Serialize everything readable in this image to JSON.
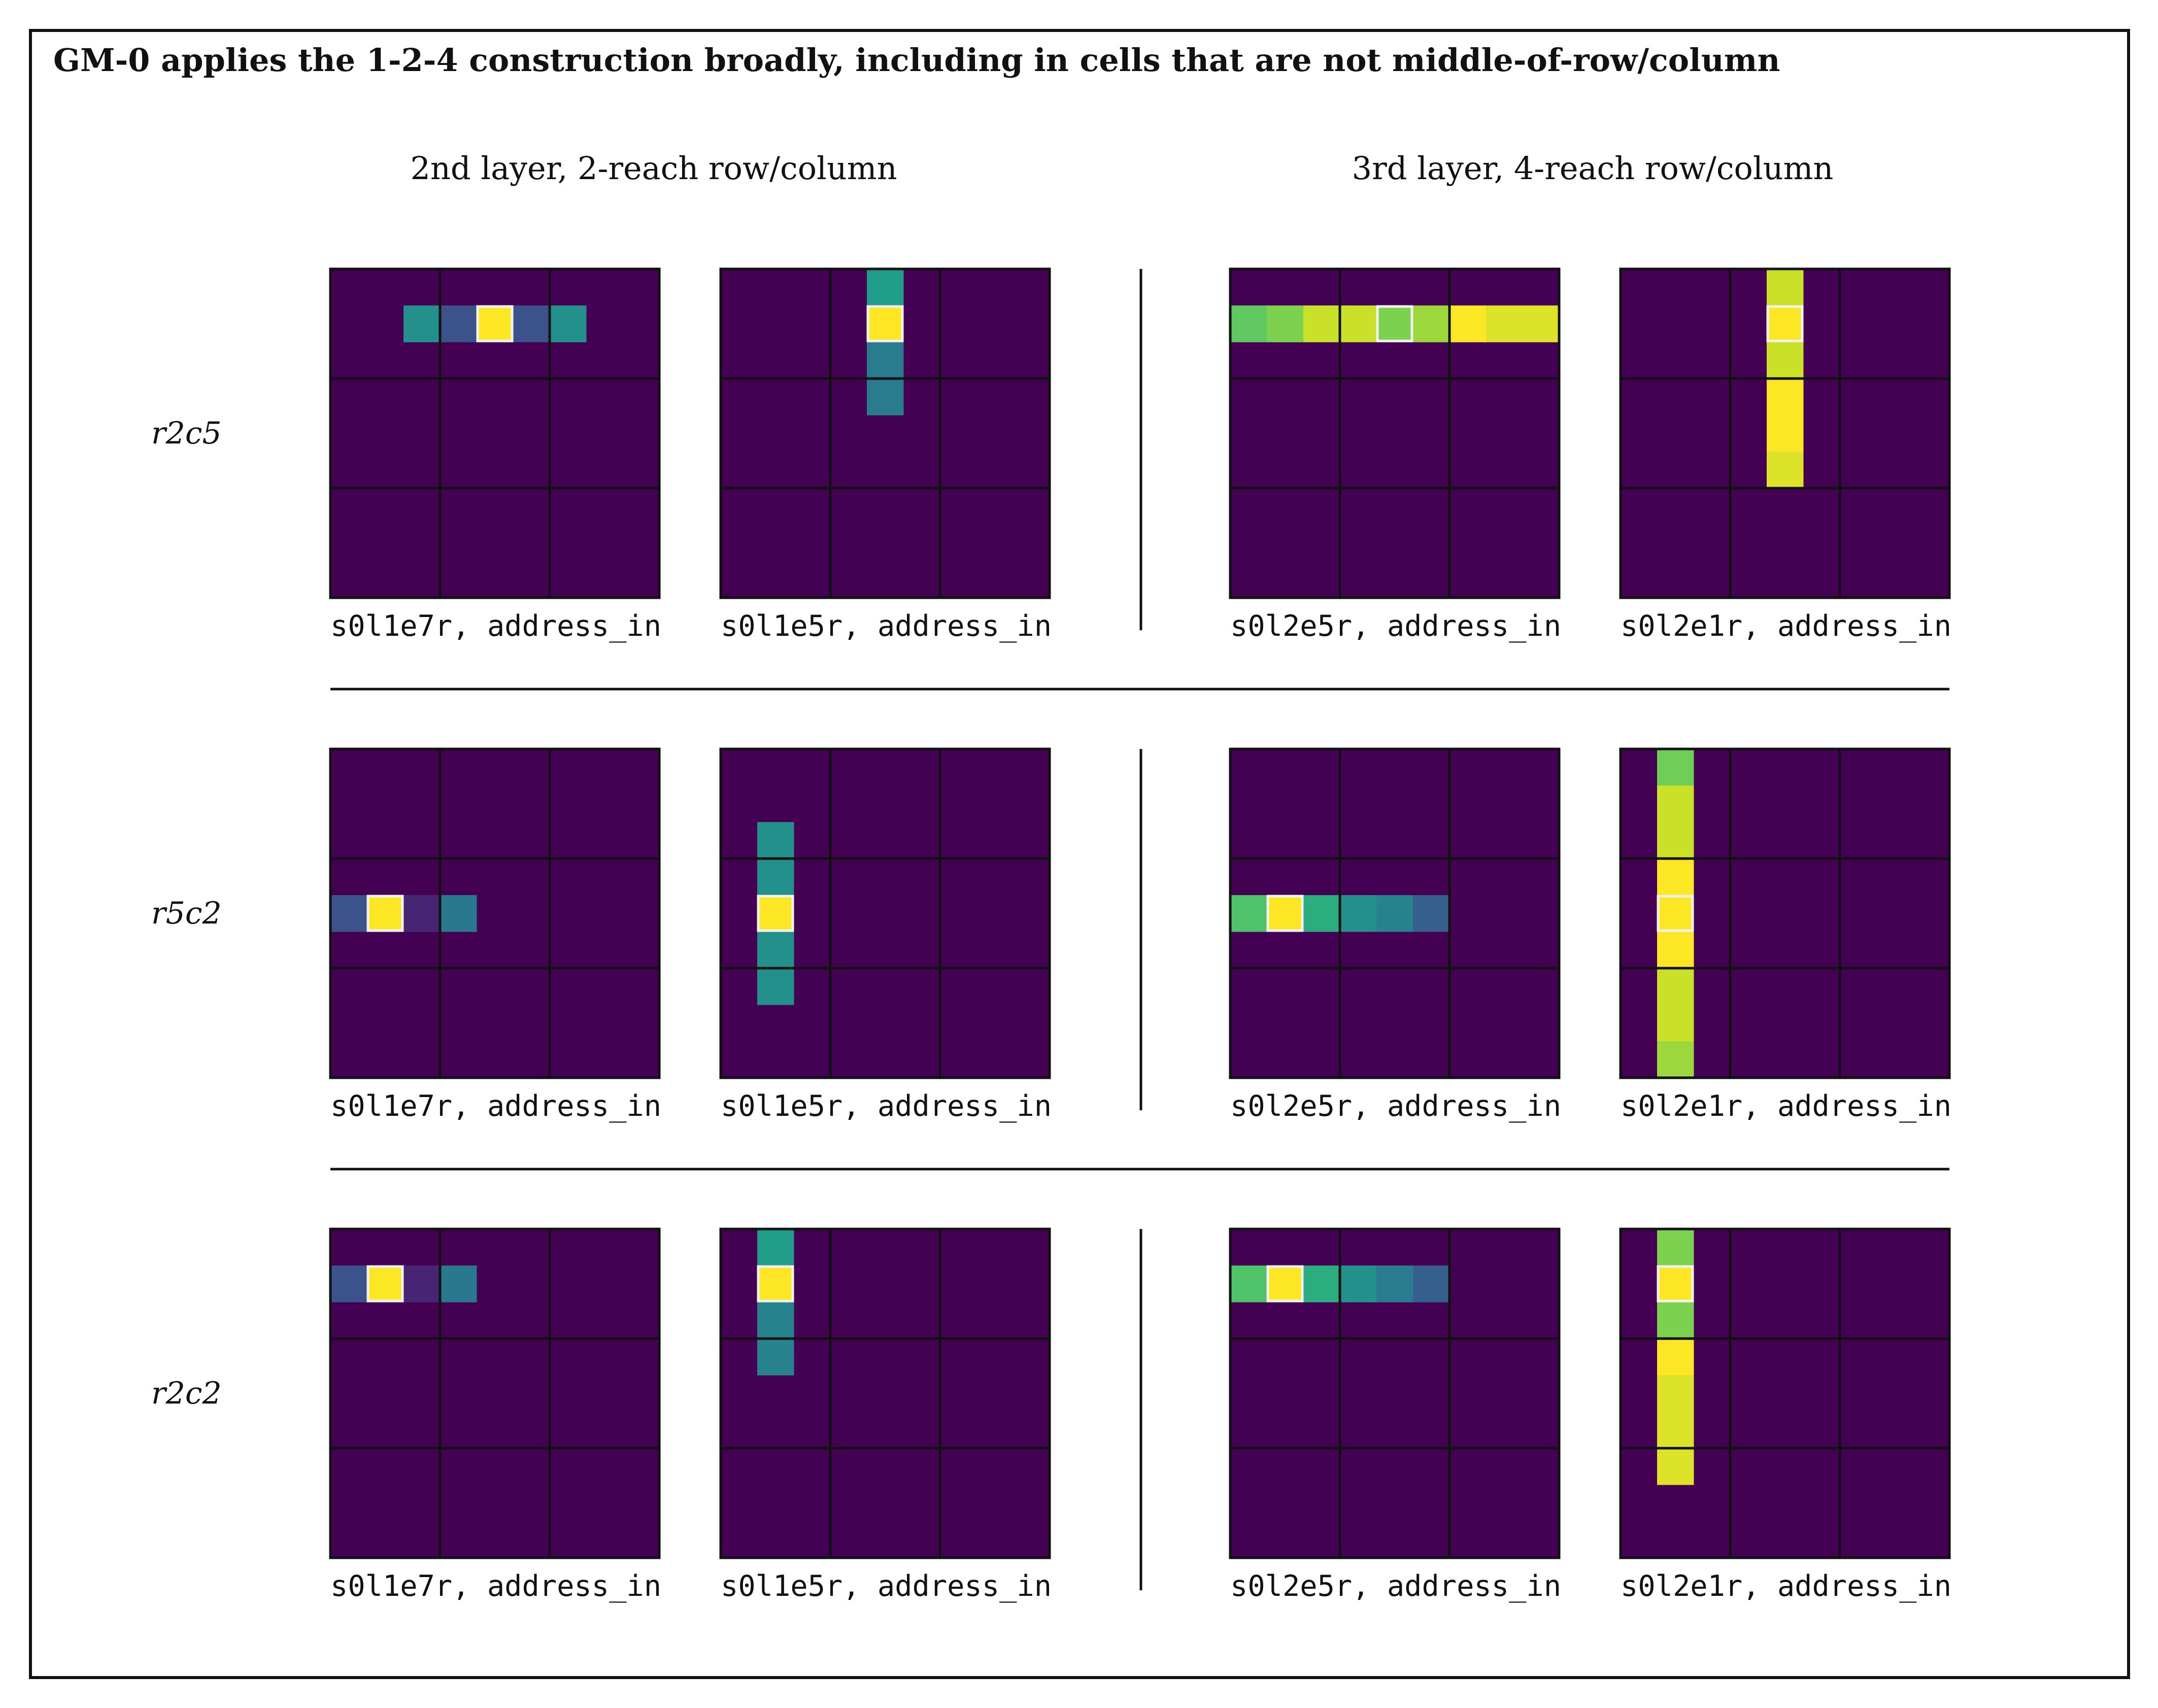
{
  "figure": {
    "title": "GM-0 applies the 1-2-4 construction broadly, including in cells that are not middle-of-row/column",
    "column_headers": [
      "2nd layer, 2-reach row/column",
      "3rd layer, 4-reach row/column"
    ]
  },
  "colors": {
    "background_cell": "#440154",
    "grid_line": "#111111",
    "highlight_outline": "#f2f2f2",
    "colormap": "viridis"
  },
  "chart_data": [
    {
      "type": "heatmap",
      "row_label": "r2c5",
      "caption": "s0l1e7r, address_in",
      "grid": [
        9,
        9
      ],
      "box_lines": true,
      "selected": [
        1,
        4
      ],
      "cells": [
        {
          "r": 1,
          "c": 2,
          "v": 0.5
        },
        {
          "r": 1,
          "c": 3,
          "v": 0.25
        },
        {
          "r": 1,
          "c": 4,
          "v": 1.0
        },
        {
          "r": 1,
          "c": 5,
          "v": 0.25
        },
        {
          "r": 1,
          "c": 6,
          "v": 0.5
        }
      ]
    },
    {
      "type": "heatmap",
      "row_label": "r2c5",
      "caption": "s0l1e5r, address_in",
      "grid": [
        9,
        9
      ],
      "box_lines": true,
      "selected": [
        1,
        4
      ],
      "cells": [
        {
          "r": 0,
          "c": 4,
          "v": 0.55
        },
        {
          "r": 1,
          "c": 4,
          "v": 1.0
        },
        {
          "r": 2,
          "c": 4,
          "v": 0.42
        },
        {
          "r": 3,
          "c": 4,
          "v": 0.42
        }
      ]
    },
    {
      "type": "heatmap",
      "row_label": "r2c5",
      "caption": "s0l2e5r, address_in",
      "grid": [
        9,
        9
      ],
      "box_lines": true,
      "selected": [
        1,
        4
      ],
      "cells": [
        {
          "r": 1,
          "c": 0,
          "v": 0.75
        },
        {
          "r": 1,
          "c": 1,
          "v": 0.8
        },
        {
          "r": 1,
          "c": 2,
          "v": 0.92
        },
        {
          "r": 1,
          "c": 3,
          "v": 0.92
        },
        {
          "r": 1,
          "c": 4,
          "v": 0.8
        },
        {
          "r": 1,
          "c": 5,
          "v": 0.85
        },
        {
          "r": 1,
          "c": 6,
          "v": 1.0
        },
        {
          "r": 1,
          "c": 7,
          "v": 0.95
        },
        {
          "r": 1,
          "c": 8,
          "v": 0.95
        }
      ]
    },
    {
      "type": "heatmap",
      "row_label": "r2c5",
      "caption": "s0l2e1r, address_in",
      "grid": [
        9,
        9
      ],
      "box_lines": true,
      "selected": [
        1,
        4
      ],
      "cells": [
        {
          "r": 0,
          "c": 4,
          "v": 0.92
        },
        {
          "r": 1,
          "c": 4,
          "v": 1.0
        },
        {
          "r": 2,
          "c": 4,
          "v": 0.92
        },
        {
          "r": 3,
          "c": 4,
          "v": 1.0
        },
        {
          "r": 4,
          "c": 4,
          "v": 1.0
        },
        {
          "r": 5,
          "c": 4,
          "v": 0.95
        }
      ]
    },
    {
      "type": "heatmap",
      "row_label": "r5c2",
      "caption": "s0l1e7r, address_in",
      "grid": [
        9,
        9
      ],
      "box_lines": true,
      "selected": [
        4,
        1
      ],
      "cells": [
        {
          "r": 4,
          "c": 0,
          "v": 0.25
        },
        {
          "r": 4,
          "c": 1,
          "v": 1.0
        },
        {
          "r": 4,
          "c": 2,
          "v": 0.1
        },
        {
          "r": 4,
          "c": 3,
          "v": 0.4
        }
      ]
    },
    {
      "type": "heatmap",
      "row_label": "r5c2",
      "caption": "s0l1e5r, address_in",
      "grid": [
        9,
        9
      ],
      "box_lines": true,
      "selected": [
        4,
        1
      ],
      "cells": [
        {
          "r": 2,
          "c": 1,
          "v": 0.5
        },
        {
          "r": 3,
          "c": 1,
          "v": 0.5
        },
        {
          "r": 4,
          "c": 1,
          "v": 1.0
        },
        {
          "r": 5,
          "c": 1,
          "v": 0.5
        },
        {
          "r": 6,
          "c": 1,
          "v": 0.5
        }
      ]
    },
    {
      "type": "heatmap",
      "row_label": "r5c2",
      "caption": "s0l2e5r, address_in",
      "grid": [
        9,
        9
      ],
      "box_lines": true,
      "selected": [
        4,
        1
      ],
      "cells": [
        {
          "r": 4,
          "c": 0,
          "v": 0.72
        },
        {
          "r": 4,
          "c": 1,
          "v": 1.0
        },
        {
          "r": 4,
          "c": 2,
          "v": 0.62
        },
        {
          "r": 4,
          "c": 3,
          "v": 0.5
        },
        {
          "r": 4,
          "c": 4,
          "v": 0.45
        },
        {
          "r": 4,
          "c": 5,
          "v": 0.3
        }
      ]
    },
    {
      "type": "heatmap",
      "row_label": "r5c2",
      "caption": "s0l2e1r, address_in",
      "grid": [
        9,
        9
      ],
      "box_lines": true,
      "selected": [
        4,
        1
      ],
      "cells": [
        {
          "r": 0,
          "c": 1,
          "v": 0.78
        },
        {
          "r": 1,
          "c": 1,
          "v": 0.92
        },
        {
          "r": 2,
          "c": 1,
          "v": 0.92
        },
        {
          "r": 3,
          "c": 1,
          "v": 1.0
        },
        {
          "r": 4,
          "c": 1,
          "v": 1.0
        },
        {
          "r": 5,
          "c": 1,
          "v": 1.0
        },
        {
          "r": 6,
          "c": 1,
          "v": 0.92
        },
        {
          "r": 7,
          "c": 1,
          "v": 0.92
        },
        {
          "r": 8,
          "c": 1,
          "v": 0.85
        }
      ]
    },
    {
      "type": "heatmap",
      "row_label": "r2c2",
      "caption": "s0l1e7r, address_in",
      "grid": [
        9,
        9
      ],
      "box_lines": true,
      "selected": [
        1,
        1
      ],
      "cells": [
        {
          "r": 1,
          "c": 0,
          "v": 0.25
        },
        {
          "r": 1,
          "c": 1,
          "v": 1.0
        },
        {
          "r": 1,
          "c": 2,
          "v": 0.1
        },
        {
          "r": 1,
          "c": 3,
          "v": 0.4
        }
      ]
    },
    {
      "type": "heatmap",
      "row_label": "r2c2",
      "caption": "s0l1e5r, address_in",
      "grid": [
        9,
        9
      ],
      "box_lines": true,
      "selected": [
        1,
        1
      ],
      "cells": [
        {
          "r": 0,
          "c": 1,
          "v": 0.55
        },
        {
          "r": 1,
          "c": 1,
          "v": 1.0
        },
        {
          "r": 2,
          "c": 1,
          "v": 0.45
        },
        {
          "r": 3,
          "c": 1,
          "v": 0.45
        }
      ]
    },
    {
      "type": "heatmap",
      "row_label": "r2c2",
      "caption": "s0l2e5r, address_in",
      "grid": [
        9,
        9
      ],
      "box_lines": true,
      "selected": [
        1,
        1
      ],
      "cells": [
        {
          "r": 1,
          "c": 0,
          "v": 0.72
        },
        {
          "r": 1,
          "c": 1,
          "v": 1.0
        },
        {
          "r": 1,
          "c": 2,
          "v": 0.62
        },
        {
          "r": 1,
          "c": 3,
          "v": 0.5
        },
        {
          "r": 1,
          "c": 4,
          "v": 0.42
        },
        {
          "r": 1,
          "c": 5,
          "v": 0.3
        }
      ]
    },
    {
      "type": "heatmap",
      "row_label": "r2c2",
      "caption": "s0l2e1r, address_in",
      "grid": [
        9,
        9
      ],
      "box_lines": true,
      "selected": [
        1,
        1
      ],
      "cells": [
        {
          "r": 0,
          "c": 1,
          "v": 0.8
        },
        {
          "r": 1,
          "c": 1,
          "v": 1.0
        },
        {
          "r": 2,
          "c": 1,
          "v": 0.8
        },
        {
          "r": 3,
          "c": 1,
          "v": 1.0
        },
        {
          "r": 4,
          "c": 1,
          "v": 0.95
        },
        {
          "r": 5,
          "c": 1,
          "v": 0.95
        },
        {
          "r": 6,
          "c": 1,
          "v": 0.95
        }
      ]
    }
  ]
}
